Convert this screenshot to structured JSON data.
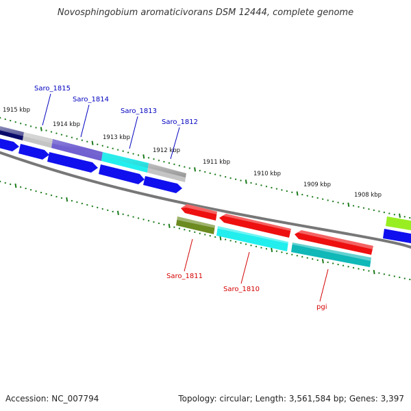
{
  "title": "Novosphingobium aromaticivorans DSM 12444, complete genome",
  "footer": {
    "accession": "Accession: NC_007794",
    "summary": "Topology: circular; Length: 3,561,584 bp; Genes: 3,397"
  },
  "colors": {
    "backbone": "#777777",
    "tick": "#1a7a1a",
    "label_forward": "#0000c0",
    "label_reverse": "#d40000",
    "blue": "#1010ee",
    "navy": "#0a0a6a",
    "gray": "#c4c4c4",
    "purple": "#7060d0",
    "cyan": "#22eeee",
    "red": "#ee1010",
    "olive": "#6b8a20",
    "teal": "#10b8b8",
    "lime": "#99ee22"
  },
  "kbp_labels": [
    "1915 kbp",
    "1914 kbp",
    "1913 kbp",
    "1912 kbp",
    "1911 kbp",
    "1910 kbp",
    "1909 kbp",
    "1908 kbp"
  ],
  "gene_labels_forward": [
    "Saro_1815",
    "Saro_1814",
    "Saro_1813",
    "Saro_1812"
  ],
  "gene_labels_reverse": [
    "Saro_1811",
    "Saro_1810",
    "pgi"
  ]
}
